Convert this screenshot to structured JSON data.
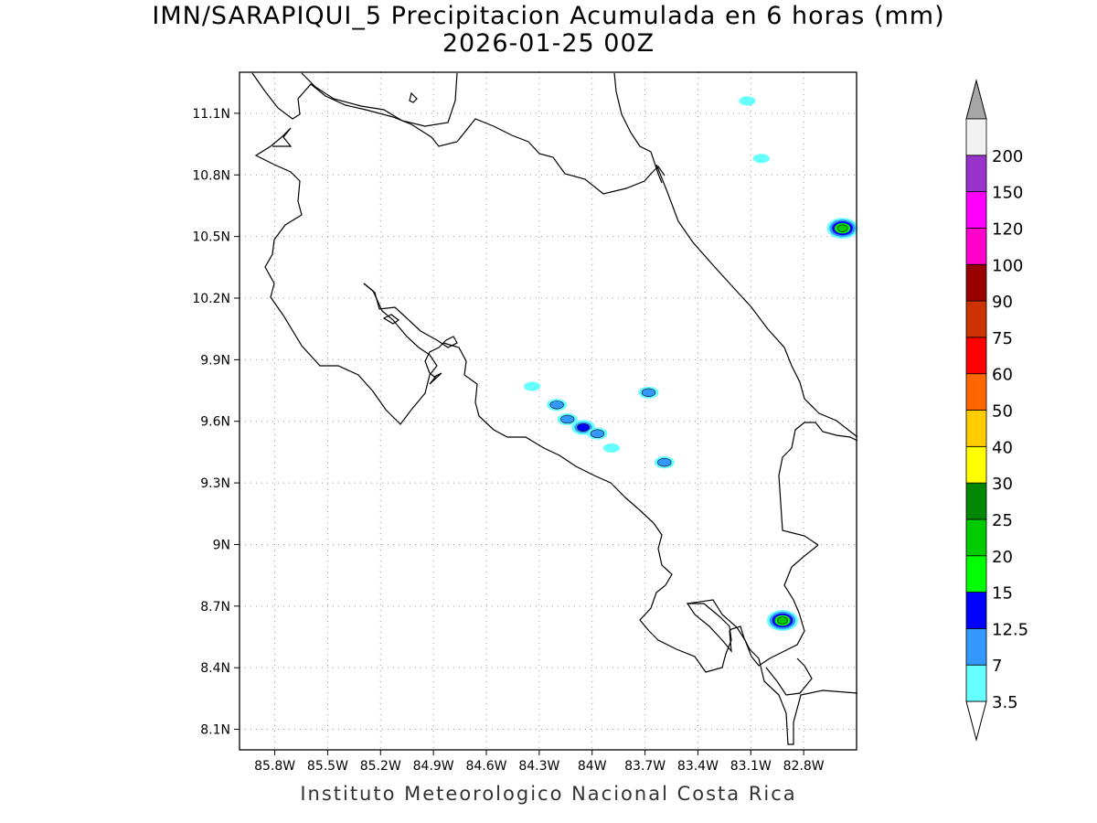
{
  "title": "IMN/SARAPIQUI_5 Precipitacion Acumulada en 6 horas (mm)",
  "subtitle": "2026-01-25 00Z",
  "footer": "Instituto Meteorologico Nacional Costa Rica",
  "chart_data": {
    "type": "contour-map",
    "variable": "Precipitacion Acumulada en 6 horas",
    "units": "mm",
    "xlim": [
      -86.0,
      -82.5
    ],
    "ylim": [
      8.0,
      11.3
    ],
    "grid": true,
    "x_ticks": [
      {
        "value": -85.8,
        "label": "85.8W"
      },
      {
        "value": -85.5,
        "label": "85.5W"
      },
      {
        "value": -85.2,
        "label": "85.2W"
      },
      {
        "value": -84.9,
        "label": "84.9W"
      },
      {
        "value": -84.6,
        "label": "84.6W"
      },
      {
        "value": -84.3,
        "label": "84.3W"
      },
      {
        "value": -84.0,
        "label": "84W"
      },
      {
        "value": -83.7,
        "label": "83.7W"
      },
      {
        "value": -83.4,
        "label": "83.4W"
      },
      {
        "value": -83.1,
        "label": "83.1W"
      },
      {
        "value": -82.8,
        "label": "82.8W"
      }
    ],
    "y_ticks": [
      {
        "value": 11.1,
        "label": "11.1N"
      },
      {
        "value": 10.8,
        "label": "10.8N"
      },
      {
        "value": 10.5,
        "label": "10.5N"
      },
      {
        "value": 10.2,
        "label": "10.2N"
      },
      {
        "value": 9.9,
        "label": "9.9N"
      },
      {
        "value": 9.6,
        "label": "9.6N"
      },
      {
        "value": 9.3,
        "label": "9.3N"
      },
      {
        "value": 9.0,
        "label": "9N"
      },
      {
        "value": 8.7,
        "label": "8.7N"
      },
      {
        "value": 8.4,
        "label": "8.4N"
      },
      {
        "value": 8.1,
        "label": "8.1N"
      }
    ],
    "legend": {
      "placement": "right",
      "levels": [
        {
          "value": "3.5",
          "color": "#66ffff"
        },
        {
          "value": "7",
          "color": "#3399ff"
        },
        {
          "value": "12.5",
          "color": "#0000ff"
        },
        {
          "value": "15",
          "color": "#00ff00"
        },
        {
          "value": "20",
          "color": "#00cc00"
        },
        {
          "value": "25",
          "color": "#008800"
        },
        {
          "value": "30",
          "color": "#ffff00"
        },
        {
          "value": "40",
          "color": "#ffcc00"
        },
        {
          "value": "50",
          "color": "#ff6600"
        },
        {
          "value": "60",
          "color": "#ff0000"
        },
        {
          "value": "75",
          "color": "#cc3300"
        },
        {
          "value": "90",
          "color": "#990000"
        },
        {
          "value": "100",
          "color": "#ff00cc"
        },
        {
          "value": "120",
          "color": "#ff00ff"
        },
        {
          "value": "150",
          "color": "#9933cc"
        },
        {
          "value": "200",
          "color": "#f2f2f2"
        }
      ],
      "over_color": "#a6a6a6",
      "under_color": "#ffffff"
    },
    "precip_cells": [
      {
        "lon": -83.12,
        "lat": 11.16,
        "max_level": "3.5"
      },
      {
        "lon": -83.04,
        "lat": 10.88,
        "max_level": "3.5"
      },
      {
        "lon": -82.58,
        "lat": 10.54,
        "max_level": "20"
      },
      {
        "lon": -84.34,
        "lat": 9.77,
        "max_level": "3.5"
      },
      {
        "lon": -84.2,
        "lat": 9.68,
        "max_level": "7"
      },
      {
        "lon": -84.14,
        "lat": 9.61,
        "max_level": "7"
      },
      {
        "lon": -84.05,
        "lat": 9.57,
        "max_level": "12.5"
      },
      {
        "lon": -83.97,
        "lat": 9.54,
        "max_level": "7"
      },
      {
        "lon": -83.89,
        "lat": 9.47,
        "max_level": "3.5"
      },
      {
        "lon": -83.68,
        "lat": 9.74,
        "max_level": "7"
      },
      {
        "lon": -83.59,
        "lat": 9.4,
        "max_level": "7"
      },
      {
        "lon": -82.92,
        "lat": 8.63,
        "max_level": "20"
      }
    ]
  }
}
